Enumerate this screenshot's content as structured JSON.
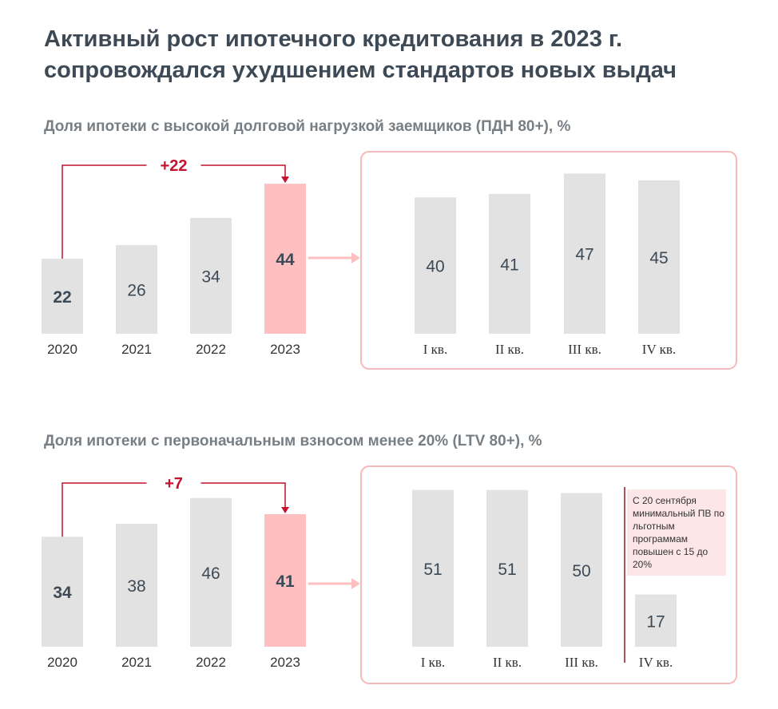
{
  "title": {
    "line1": "Активный рост ипотечного кредитования в 2023 г.",
    "line2": "сопровождался ухудшением стандартов новых выдач"
  },
  "colors": {
    "bar": "#e2e2e2",
    "highlight": "#fdbfc0",
    "accent": "#c4122f",
    "frame": "#f7b8ba",
    "text": "#3d4a56"
  },
  "chart_data": [
    {
      "type": "bar",
      "title": "Доля ипотеки с высокой долговой нагрузкой заемщиков (ПДН 80+), %",
      "annual": {
        "categories": [
          "2020",
          "2021",
          "2022",
          "2023"
        ],
        "values": [
          22,
          26,
          34,
          44
        ],
        "highlight": "2023",
        "change_label": "+22"
      },
      "quarterly": {
        "categories": [
          "I кв.",
          "II кв.",
          "III кв.",
          "IV кв."
        ],
        "values": [
          40,
          41,
          47,
          45
        ]
      }
    },
    {
      "type": "bar",
      "title": "Доля ипотеки с первоначальным взносом менее 20% (LTV 80+), %",
      "annual": {
        "categories": [
          "2020",
          "2021",
          "2022",
          "2023"
        ],
        "values": [
          34,
          38,
          46,
          41
        ],
        "highlight": "2023",
        "change_label": "+7"
      },
      "quarterly": {
        "categories": [
          "I кв.",
          "II кв.",
          "III кв.",
          "IV кв."
        ],
        "values": [
          51,
          51,
          50,
          17
        ]
      },
      "annotation": "С 20 сентября минимальный ПВ по льготным программам повышен с 15 до 20%"
    }
  ]
}
